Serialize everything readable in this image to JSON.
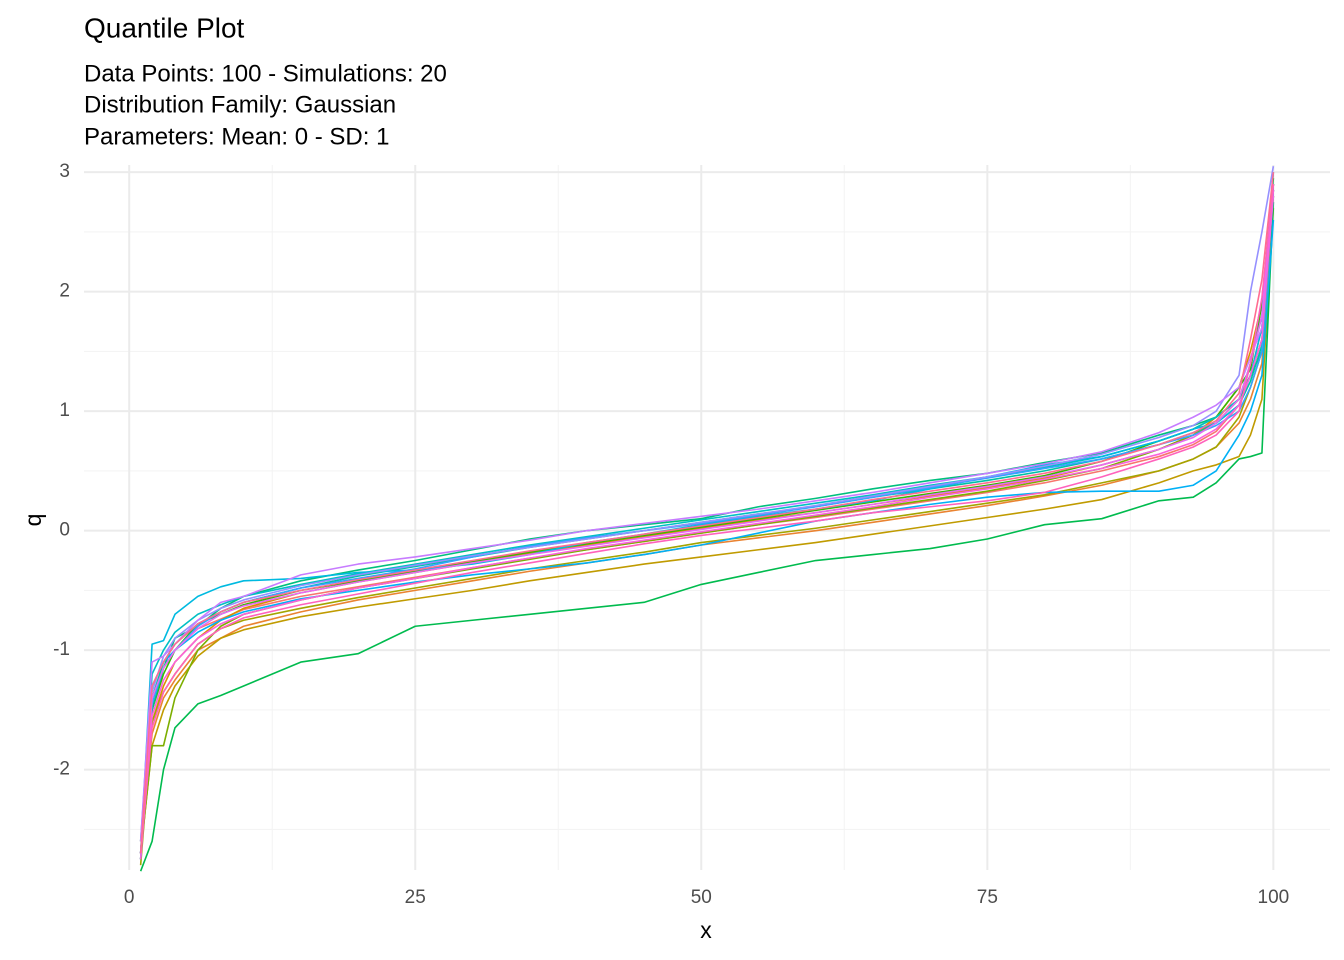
{
  "chart_data": {
    "type": "line",
    "title": "Quantile Plot",
    "subtitle": [
      "Data Points: 100 - Simulations: 20",
      "Distribution Family: Gaussian",
      "Parameters: Mean: 0 - SD: 1"
    ],
    "x_label": "x",
    "y_label": "q",
    "xlim": [
      -3.95,
      104.95
    ],
    "ylim": [
      -2.84,
      3.06
    ],
    "xticks": [
      0,
      25,
      50,
      75,
      100
    ],
    "yticks": [
      -2,
      -1,
      0,
      1,
      2,
      3
    ],
    "xminor": [
      12.5,
      37.5,
      62.5,
      87.5
    ],
    "yminor": [
      -2.5,
      -1.5,
      -0.5,
      0.5,
      1.5,
      2.5
    ],
    "grid": true,
    "x": [
      1,
      2,
      3,
      4,
      6,
      8,
      10,
      15,
      20,
      25,
      30,
      35,
      40,
      45,
      50,
      55,
      60,
      65,
      70,
      75,
      80,
      85,
      90,
      93,
      95,
      97,
      98,
      99,
      100
    ],
    "series": [
      {
        "color": "#F8766D",
        "values": [
          -2.7,
          -1.45,
          -1.15,
          -1.0,
          -0.82,
          -0.74,
          -0.66,
          -0.55,
          -0.47,
          -0.39,
          -0.31,
          -0.23,
          -0.16,
          -0.09,
          -0.02,
          0.05,
          0.11,
          0.18,
          0.25,
          0.32,
          0.4,
          0.5,
          0.62,
          0.72,
          0.83,
          1.05,
          1.3,
          1.7,
          2.9
        ]
      },
      {
        "color": "#EA8331",
        "values": [
          -2.6,
          -1.7,
          -1.4,
          -1.25,
          -1.0,
          -0.9,
          -0.8,
          -0.68,
          -0.58,
          -0.5,
          -0.42,
          -0.34,
          -0.27,
          -0.2,
          -0.12,
          -0.06,
          0.0,
          0.07,
          0.14,
          0.21,
          0.29,
          0.38,
          0.5,
          0.6,
          0.7,
          0.9,
          1.1,
          1.4,
          2.8
        ]
      },
      {
        "color": "#D89000",
        "values": [
          -2.75,
          -1.6,
          -1.3,
          -1.1,
          -0.9,
          -0.75,
          -0.65,
          -0.52,
          -0.43,
          -0.35,
          -0.27,
          -0.19,
          -0.12,
          -0.05,
          0.02,
          0.09,
          0.15,
          0.22,
          0.29,
          0.36,
          0.44,
          0.55,
          0.68,
          0.8,
          0.95,
          1.2,
          1.5,
          1.9,
          2.85
        ]
      },
      {
        "color": "#C09B00",
        "values": [
          -2.7,
          -1.8,
          -1.5,
          -1.3,
          -1.05,
          -0.9,
          -0.83,
          -0.72,
          -0.64,
          -0.57,
          -0.5,
          -0.42,
          -0.35,
          -0.28,
          -0.22,
          -0.16,
          -0.1,
          -0.03,
          0.04,
          0.11,
          0.18,
          0.26,
          0.4,
          0.5,
          0.55,
          0.62,
          0.8,
          1.1,
          2.7
        ]
      },
      {
        "color": "#A3A500",
        "values": [
          -2.8,
          -1.6,
          -1.35,
          -1.2,
          -0.95,
          -0.82,
          -0.75,
          -0.65,
          -0.56,
          -0.48,
          -0.4,
          -0.32,
          -0.25,
          -0.18,
          -0.1,
          -0.04,
          0.02,
          0.09,
          0.16,
          0.23,
          0.3,
          0.4,
          0.5,
          0.6,
          0.7,
          0.95,
          1.2,
          1.5,
          2.9
        ]
      },
      {
        "color": "#7CAE00",
        "values": [
          -2.7,
          -1.8,
          -1.8,
          -1.4,
          -1.0,
          -0.8,
          -0.7,
          -0.58,
          -0.48,
          -0.4,
          -0.32,
          -0.24,
          -0.16,
          -0.09,
          -0.02,
          0.05,
          0.12,
          0.19,
          0.26,
          0.33,
          0.42,
          0.52,
          0.68,
          0.8,
          0.9,
          1.1,
          1.3,
          1.6,
          2.8
        ]
      },
      {
        "color": "#39B600",
        "values": [
          -2.75,
          -1.5,
          -1.2,
          -1.0,
          -0.78,
          -0.7,
          -0.62,
          -0.5,
          -0.42,
          -0.34,
          -0.26,
          -0.18,
          -0.11,
          -0.04,
          0.03,
          0.1,
          0.17,
          0.24,
          0.31,
          0.38,
          0.46,
          0.58,
          0.75,
          0.85,
          0.95,
          1.2,
          1.35,
          1.9,
          2.95
        ]
      },
      {
        "color": "#00BB4E",
        "values": [
          -2.85,
          -2.6,
          -2.0,
          -1.65,
          -1.45,
          -1.38,
          -1.3,
          -1.1,
          -1.03,
          -0.8,
          -0.75,
          -0.7,
          -0.65,
          -0.6,
          -0.45,
          -0.35,
          -0.25,
          -0.2,
          -0.15,
          -0.07,
          0.05,
          0.1,
          0.25,
          0.28,
          0.4,
          0.6,
          0.62,
          0.65,
          2.75
        ]
      },
      {
        "color": "#00BF7D",
        "values": [
          -2.7,
          -1.5,
          -1.15,
          -0.9,
          -0.8,
          -0.65,
          -0.55,
          -0.42,
          -0.33,
          -0.25,
          -0.16,
          -0.07,
          0.0,
          0.05,
          0.1,
          0.2,
          0.27,
          0.35,
          0.42,
          0.48,
          0.57,
          0.65,
          0.8,
          0.88,
          0.95,
          1.1,
          1.3,
          1.5,
          2.9
        ]
      },
      {
        "color": "#00C1A3",
        "values": [
          -2.7,
          -1.4,
          -1.1,
          -0.95,
          -0.78,
          -0.68,
          -0.6,
          -0.48,
          -0.38,
          -0.3,
          -0.22,
          -0.14,
          -0.07,
          0.0,
          0.07,
          0.14,
          0.2,
          0.28,
          0.35,
          0.42,
          0.5,
          0.6,
          0.72,
          0.82,
          0.9,
          1.05,
          1.25,
          1.55,
          2.85
        ]
      },
      {
        "color": "#00BFC4",
        "values": [
          -2.6,
          -1.2,
          -1.0,
          -0.85,
          -0.7,
          -0.62,
          -0.55,
          -0.45,
          -0.36,
          -0.28,
          -0.2,
          -0.12,
          -0.05,
          0.02,
          0.09,
          0.16,
          0.23,
          0.3,
          0.38,
          0.45,
          0.53,
          0.62,
          0.75,
          0.85,
          0.95,
          1.1,
          1.4,
          1.8,
          3.0
        ]
      },
      {
        "color": "#00BAE0",
        "values": [
          -2.7,
          -0.95,
          -0.92,
          -0.7,
          -0.55,
          -0.47,
          -0.42,
          -0.4,
          -0.35,
          -0.33,
          -0.28,
          -0.2,
          -0.1,
          -0.03,
          0.05,
          0.12,
          0.18,
          0.25,
          0.35,
          0.45,
          0.55,
          0.62,
          0.75,
          0.85,
          0.9,
          1.05,
          1.3,
          1.7,
          2.9
        ]
      },
      {
        "color": "#00B0F6",
        "values": [
          -2.75,
          -1.3,
          -1.1,
          -1.0,
          -0.85,
          -0.75,
          -0.68,
          -0.57,
          -0.5,
          -0.43,
          -0.37,
          -0.32,
          -0.27,
          -0.2,
          -0.12,
          -0.02,
          0.08,
          0.15,
          0.22,
          0.28,
          0.32,
          0.33,
          0.33,
          0.38,
          0.5,
          0.8,
          1.0,
          1.3,
          2.6
        ]
      },
      {
        "color": "#35A2FF",
        "values": [
          -2.7,
          -1.45,
          -1.15,
          -1.0,
          -0.8,
          -0.68,
          -0.6,
          -0.48,
          -0.4,
          -0.32,
          -0.22,
          -0.13,
          -0.06,
          0.0,
          0.06,
          0.13,
          0.2,
          0.28,
          0.36,
          0.44,
          0.52,
          0.6,
          0.72,
          0.8,
          0.88,
          1.0,
          1.2,
          1.5,
          2.85
        ]
      },
      {
        "color": "#9590FF",
        "values": [
          -2.75,
          -1.35,
          -1.05,
          -0.9,
          -0.75,
          -0.65,
          -0.58,
          -0.46,
          -0.37,
          -0.29,
          -0.21,
          -0.14,
          -0.07,
          0.0,
          0.07,
          0.14,
          0.21,
          0.29,
          0.37,
          0.45,
          0.54,
          0.64,
          0.78,
          0.88,
          1.0,
          1.3,
          2.0,
          2.5,
          3.05
        ]
      },
      {
        "color": "#C77CFF",
        "values": [
          -2.6,
          -1.1,
          -1.05,
          -0.95,
          -0.75,
          -0.6,
          -0.55,
          -0.37,
          -0.28,
          -0.22,
          -0.15,
          -0.08,
          0.0,
          0.06,
          0.12,
          0.18,
          0.25,
          0.32,
          0.4,
          0.48,
          0.56,
          0.66,
          0.82,
          0.95,
          1.05,
          1.2,
          1.45,
          1.7,
          2.8
        ]
      },
      {
        "color": "#E76BF3",
        "values": [
          -2.7,
          -1.4,
          -1.15,
          -1.0,
          -0.82,
          -0.7,
          -0.63,
          -0.52,
          -0.43,
          -0.35,
          -0.27,
          -0.2,
          -0.13,
          -0.06,
          0.01,
          0.08,
          0.15,
          0.22,
          0.3,
          0.37,
          0.45,
          0.55,
          0.68,
          0.78,
          0.9,
          1.1,
          1.4,
          1.8,
          2.9
        ]
      },
      {
        "color": "#FA62DB",
        "values": [
          -2.75,
          -1.55,
          -1.25,
          -1.1,
          -0.9,
          -0.78,
          -0.7,
          -0.58,
          -0.48,
          -0.4,
          -0.31,
          -0.23,
          -0.15,
          -0.08,
          -0.01,
          0.06,
          0.13,
          0.2,
          0.28,
          0.35,
          0.43,
          0.52,
          0.64,
          0.74,
          0.85,
          1.05,
          1.3,
          1.6,
          2.85
        ]
      },
      {
        "color": "#FF62BC",
        "values": [
          -2.7,
          -1.65,
          -1.35,
          -1.2,
          -0.95,
          -0.82,
          -0.73,
          -0.62,
          -0.53,
          -0.44,
          -0.35,
          -0.27,
          -0.19,
          -0.11,
          -0.04,
          0.02,
          0.08,
          0.15,
          0.2,
          0.25,
          0.32,
          0.45,
          0.6,
          0.7,
          0.8,
          1.0,
          1.4,
          1.95,
          2.9
        ]
      },
      {
        "color": "#FF6C91",
        "values": [
          -2.7,
          -1.3,
          -1.1,
          -0.95,
          -0.78,
          -0.68,
          -0.6,
          -0.5,
          -0.41,
          -0.33,
          -0.25,
          -0.17,
          -0.1,
          -0.03,
          0.04,
          0.11,
          0.18,
          0.26,
          0.33,
          0.4,
          0.48,
          0.58,
          0.72,
          0.82,
          0.92,
          1.15,
          1.6,
          2.1,
          3.0
        ]
      }
    ]
  }
}
